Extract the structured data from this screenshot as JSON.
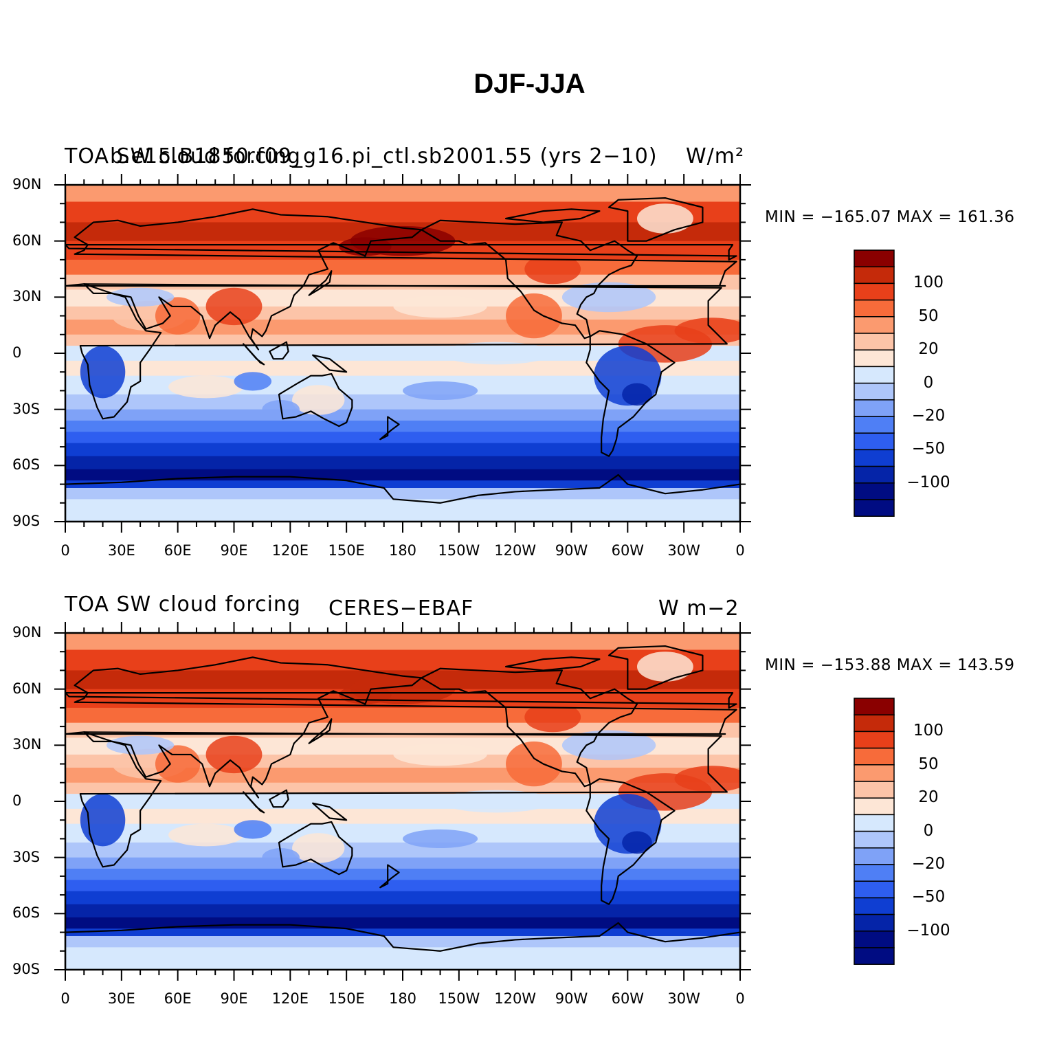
{
  "title": "DJF-JJA",
  "colors": {
    "palette": [
      "#000c82",
      "#0524a8",
      "#0f3ed2",
      "#2e5ef0",
      "#4f7ff5",
      "#7fa2f7",
      "#aec6fa",
      "#d6e8fd",
      "#fde6d6",
      "#fcc4a8",
      "#fb9a6f",
      "#f76b3a",
      "#e8401a",
      "#c52a0a",
      "#8a0000"
    ],
    "coastline": "#000000"
  },
  "lat_ticks": [
    "90N",
    "60N",
    "30N",
    "0",
    "30S",
    "60S",
    "90S"
  ],
  "lon_ticks": [
    "0",
    "30E",
    "60E",
    "90E",
    "120E",
    "150E",
    "180",
    "150W",
    "120W",
    "90W",
    "60W",
    "30W",
    "0"
  ],
  "colorbar_labels": [
    "100",
    "50",
    "20",
    "0",
    "−20",
    "−50",
    "−100"
  ],
  "panels": [
    {
      "left_title": "TOA SW cloud forcing",
      "center_title": "b.e15.B1850.f09_g16.pi_ctl.sb2001.55 (yrs 2−10)",
      "right_title": "W/m²",
      "min_max": "MIN = −165.07  MAX = 161.36",
      "min": -165.07,
      "max": 161.36
    },
    {
      "left_title": "TOA SW cloud forcing",
      "center_title": "CERES−EBAF",
      "right_title": "W m−2",
      "min_max": "MIN = −153.88  MAX = 143.59",
      "min": -153.88,
      "max": 143.59
    }
  ]
}
